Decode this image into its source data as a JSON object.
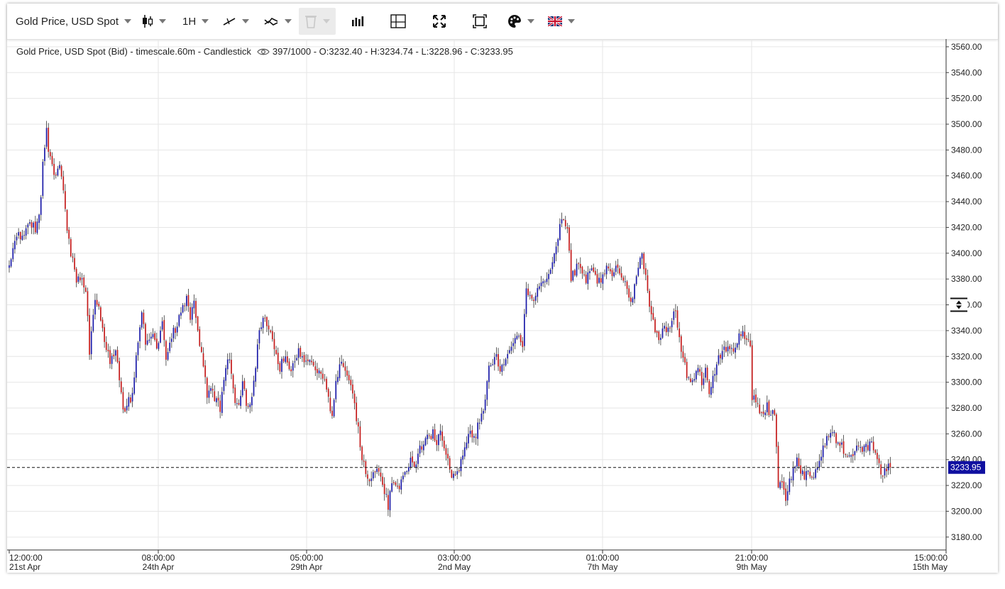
{
  "toolbar": {
    "instrument_label": "Gold Price, USD Spot",
    "timeframe_label": "1H",
    "icons": [
      "candlestick-type-icon",
      "line-tools-icon",
      "indicators-icon",
      "trash-icon",
      "volume-icon",
      "crosshair-icon",
      "fullscreen-icon",
      "fit-screen-icon",
      "theme-palette-icon",
      "uk-flag-icon"
    ]
  },
  "legend": {
    "series_label": "Gold Price, USD Spot (Bid) - timescale.60m - Candlestick",
    "stats": "397/1000 - O:3232.40 - H:3234.74 - L:3228.96 - C:3233.95"
  },
  "chart_data": {
    "type": "candlestick",
    "title": "Gold Price, USD Spot (Bid)",
    "timeframe": "60m",
    "ylim": [
      3170,
      3566
    ],
    "y_ticks": [
      "3560.00",
      "3540.00",
      "3520.00",
      "3500.00",
      "3480.00",
      "3460.00",
      "3440.00",
      "3420.00",
      "3400.00",
      "3380.00",
      "3360.00",
      "3340.00",
      "3320.00",
      "3300.00",
      "3280.00",
      "3260.00",
      "3240.00",
      "3220.00",
      "3200.00",
      "3180.00"
    ],
    "x_ticks": [
      {
        "time": "12:00:00",
        "date": "21st Apr"
      },
      {
        "time": "08:00:00",
        "date": "24th Apr"
      },
      {
        "time": "05:00:00",
        "date": "29th Apr"
      },
      {
        "time": "03:00:00",
        "date": "2nd May"
      },
      {
        "time": "01:00:00",
        "date": "7th May"
      },
      {
        "time": "21:00:00",
        "date": "9th May"
      },
      {
        "time": "15:00:00",
        "date": "15th May"
      }
    ],
    "current_price": "3233.95",
    "current_value": 3233.95,
    "up_color": "#1a1aa8",
    "down_color": "#c41a1a",
    "wick_color": "#333333",
    "grid": true,
    "path": [
      [
        0,
        3392
      ],
      [
        3,
        3410
      ],
      [
        7,
        3415
      ],
      [
        11,
        3425
      ],
      [
        14,
        3420
      ],
      [
        17,
        3440
      ],
      [
        18,
        3470
      ],
      [
        20,
        3495
      ],
      [
        21,
        3482
      ],
      [
        24,
        3460
      ],
      [
        27,
        3470
      ],
      [
        29,
        3450
      ],
      [
        31,
        3420
      ],
      [
        33,
        3400
      ],
      [
        36,
        3378
      ],
      [
        38,
        3380
      ],
      [
        41,
        3370
      ],
      [
        43,
        3325
      ],
      [
        46,
        3362
      ],
      [
        48,
        3355
      ],
      [
        51,
        3330
      ],
      [
        54,
        3318
      ],
      [
        57,
        3322
      ],
      [
        59,
        3305
      ],
      [
        61,
        3278
      ],
      [
        64,
        3285
      ],
      [
        66,
        3288
      ],
      [
        68,
        3318
      ],
      [
        71,
        3355
      ],
      [
        73,
        3330
      ],
      [
        76,
        3338
      ],
      [
        79,
        3325
      ],
      [
        82,
        3345
      ],
      [
        84,
        3320
      ],
      [
        87,
        3335
      ],
      [
        90,
        3345
      ],
      [
        93,
        3360
      ],
      [
        95,
        3365
      ],
      [
        97,
        3350
      ],
      [
        99,
        3360
      ],
      [
        100,
        3348
      ],
      [
        102,
        3330
      ],
      [
        104,
        3310
      ],
      [
        106,
        3290
      ],
      [
        108,
        3295
      ],
      [
        111,
        3285
      ],
      [
        113,
        3280
      ],
      [
        115,
        3300
      ],
      [
        117,
        3318
      ],
      [
        119,
        3310
      ],
      [
        121,
        3280
      ],
      [
        123,
        3285
      ],
      [
        125,
        3298
      ],
      [
        127,
        3285
      ],
      [
        129,
        3280
      ],
      [
        131,
        3300
      ],
      [
        133,
        3330
      ],
      [
        135,
        3345
      ],
      [
        137,
        3352
      ],
      [
        139,
        3340
      ],
      [
        141,
        3330
      ],
      [
        143,
        3320
      ],
      [
        145,
        3310
      ],
      [
        147,
        3320
      ],
      [
        149,
        3315
      ],
      [
        151,
        3310
      ],
      [
        153,
        3315
      ],
      [
        155,
        3325
      ],
      [
        157,
        3318
      ],
      [
        159,
        3320
      ],
      [
        161,
        3315
      ],
      [
        163,
        3310
      ],
      [
        165,
        3305
      ],
      [
        167,
        3310
      ],
      [
        169,
        3300
      ],
      [
        171,
        3285
      ],
      [
        173,
        3275
      ],
      [
        175,
        3300
      ],
      [
        177,
        3310
      ],
      [
        179,
        3315
      ],
      [
        181,
        3305
      ],
      [
        183,
        3295
      ],
      [
        185,
        3280
      ],
      [
        187,
        3262
      ],
      [
        189,
        3240
      ],
      [
        191,
        3232
      ],
      [
        193,
        3225
      ],
      [
        195,
        3230
      ],
      [
        197,
        3235
      ],
      [
        199,
        3225
      ],
      [
        201,
        3215
      ],
      [
        203,
        3205
      ],
      [
        205,
        3225
      ],
      [
        207,
        3220
      ],
      [
        209,
        3218
      ],
      [
        211,
        3225
      ],
      [
        213,
        3235
      ],
      [
        215,
        3240
      ],
      [
        217,
        3232
      ],
      [
        219,
        3245
      ],
      [
        221,
        3250
      ],
      [
        223,
        3258
      ],
      [
        225,
        3255
      ],
      [
        227,
        3262
      ],
      [
        229,
        3255
      ],
      [
        231,
        3262
      ],
      [
        233,
        3250
      ],
      [
        235,
        3240
      ],
      [
        237,
        3228
      ],
      [
        239,
        3230
      ],
      [
        241,
        3235
      ],
      [
        243,
        3240
      ],
      [
        245,
        3255
      ],
      [
        247,
        3265
      ],
      [
        249,
        3255
      ],
      [
        251,
        3265
      ],
      [
        253,
        3275
      ],
      [
        255,
        3285
      ],
      [
        257,
        3310
      ],
      [
        259,
        3315
      ],
      [
        261,
        3318
      ],
      [
        263,
        3310
      ],
      [
        265,
        3315
      ],
      [
        267,
        3325
      ],
      [
        269,
        3330
      ],
      [
        271,
        3335
      ],
      [
        273,
        3340
      ],
      [
        275,
        3330
      ],
      [
        277,
        3375
      ],
      [
        279,
        3365
      ],
      [
        281,
        3360
      ],
      [
        283,
        3370
      ],
      [
        285,
        3380
      ],
      [
        287,
        3375
      ],
      [
        289,
        3385
      ],
      [
        291,
        3392
      ],
      [
        293,
        3405
      ],
      [
        295,
        3420
      ],
      [
        297,
        3425
      ],
      [
        299,
        3420
      ],
      [
        301,
        3380
      ],
      [
        303,
        3385
      ],
      [
        305,
        3392
      ],
      [
        307,
        3385
      ],
      [
        309,
        3378
      ],
      [
        311,
        3386
      ],
      [
        313,
        3388
      ],
      [
        315,
        3380
      ],
      [
        317,
        3376
      ],
      [
        319,
        3385
      ],
      [
        321,
        3390
      ],
      [
        323,
        3382
      ],
      [
        325,
        3388
      ],
      [
        327,
        3385
      ],
      [
        329,
        3380
      ],
      [
        331,
        3370
      ],
      [
        333,
        3365
      ],
      [
        335,
        3373
      ],
      [
        337,
        3390
      ],
      [
        339,
        3400
      ],
      [
        341,
        3380
      ],
      [
        343,
        3360
      ],
      [
        345,
        3350
      ],
      [
        347,
        3335
      ],
      [
        349,
        3338
      ],
      [
        351,
        3345
      ],
      [
        353,
        3340
      ],
      [
        355,
        3350
      ],
      [
        357,
        3355
      ],
      [
        359,
        3335
      ],
      [
        361,
        3318
      ],
      [
        363,
        3305
      ],
      [
        365,
        3300
      ],
      [
        367,
        3305
      ],
      [
        369,
        3310
      ],
      [
        371,
        3300
      ],
      [
        373,
        3310
      ],
      [
        375,
        3290
      ],
      [
        377,
        3305
      ],
      [
        379,
        3315
      ],
      [
        381,
        3320
      ],
      [
        383,
        3325
      ],
      [
        385,
        3328
      ],
      [
        387,
        3325
      ],
      [
        389,
        3330
      ],
      [
        391,
        3335
      ],
      [
        393,
        3340
      ],
      [
        395,
        3335
      ],
      [
        397,
        3330
      ],
      [
        398,
        3290
      ],
      [
        400,
        3285
      ],
      [
        402,
        3275
      ],
      [
        404,
        3278
      ],
      [
        406,
        3282
      ],
      [
        408,
        3275
      ],
      [
        410,
        3275
      ],
      [
        412,
        3220
      ],
      [
        414,
        3222
      ],
      [
        416,
        3210
      ],
      [
        418,
        3225
      ],
      [
        420,
        3230
      ],
      [
        422,
        3238
      ],
      [
        424,
        3232
      ],
      [
        426,
        3228
      ],
      [
        428,
        3232
      ],
      [
        430,
        3225
      ],
      [
        432,
        3235
      ],
      [
        434,
        3240
      ],
      [
        436,
        3250
      ],
      [
        438,
        3255
      ],
      [
        440,
        3262
      ],
      [
        442,
        3258
      ],
      [
        444,
        3252
      ],
      [
        446,
        3250
      ],
      [
        448,
        3245
      ],
      [
        450,
        3240
      ],
      [
        452,
        3243
      ],
      [
        454,
        3248
      ],
      [
        456,
        3250
      ],
      [
        458,
        3248
      ],
      [
        460,
        3250
      ],
      [
        462,
        3252
      ],
      [
        464,
        3248
      ],
      [
        466,
        3235
      ],
      [
        468,
        3228
      ],
      [
        470,
        3232
      ],
      [
        472,
        3234
      ]
    ]
  }
}
